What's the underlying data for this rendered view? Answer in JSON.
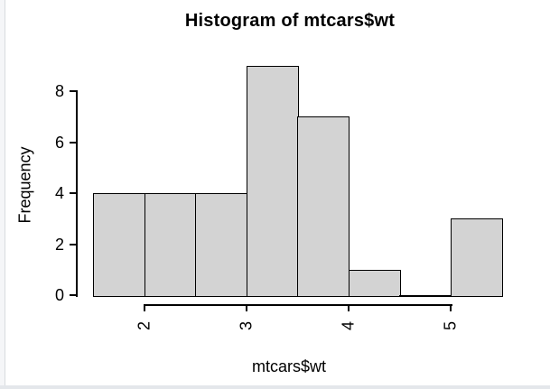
{
  "page": {
    "background": "#ffffff",
    "left_gutter_color": "#f5f6f8",
    "bottom_strip_color": "#e4e7eb"
  },
  "chart_data": {
    "type": "bar",
    "subtype": "histogram",
    "title": "Histogram of mtcars$wt",
    "xlabel": "mtcars$wt",
    "ylabel": "Frequency",
    "breaks": [
      1.5,
      2,
      2.5,
      3,
      3.5,
      4,
      4.5,
      5,
      5.5
    ],
    "counts": [
      4,
      4,
      4,
      9,
      7,
      1,
      0,
      3
    ],
    "x_ticks": [
      "2",
      "3",
      "4",
      "5"
    ],
    "x_tick_values": [
      2,
      3,
      4,
      5
    ],
    "y_ticks": [
      "0",
      "2",
      "4",
      "6",
      "8"
    ],
    "y_tick_values": [
      0,
      2,
      4,
      6,
      8
    ],
    "xlim": [
      1.5,
      5.5
    ],
    "ylim": [
      0,
      9
    ],
    "grid": false,
    "legend": false,
    "x_tick_label_rotation_deg": -90,
    "bar_fill": "#d3d3d3",
    "bar_border": "#000000",
    "axis_color": "#000000",
    "text_color": "#000000"
  }
}
